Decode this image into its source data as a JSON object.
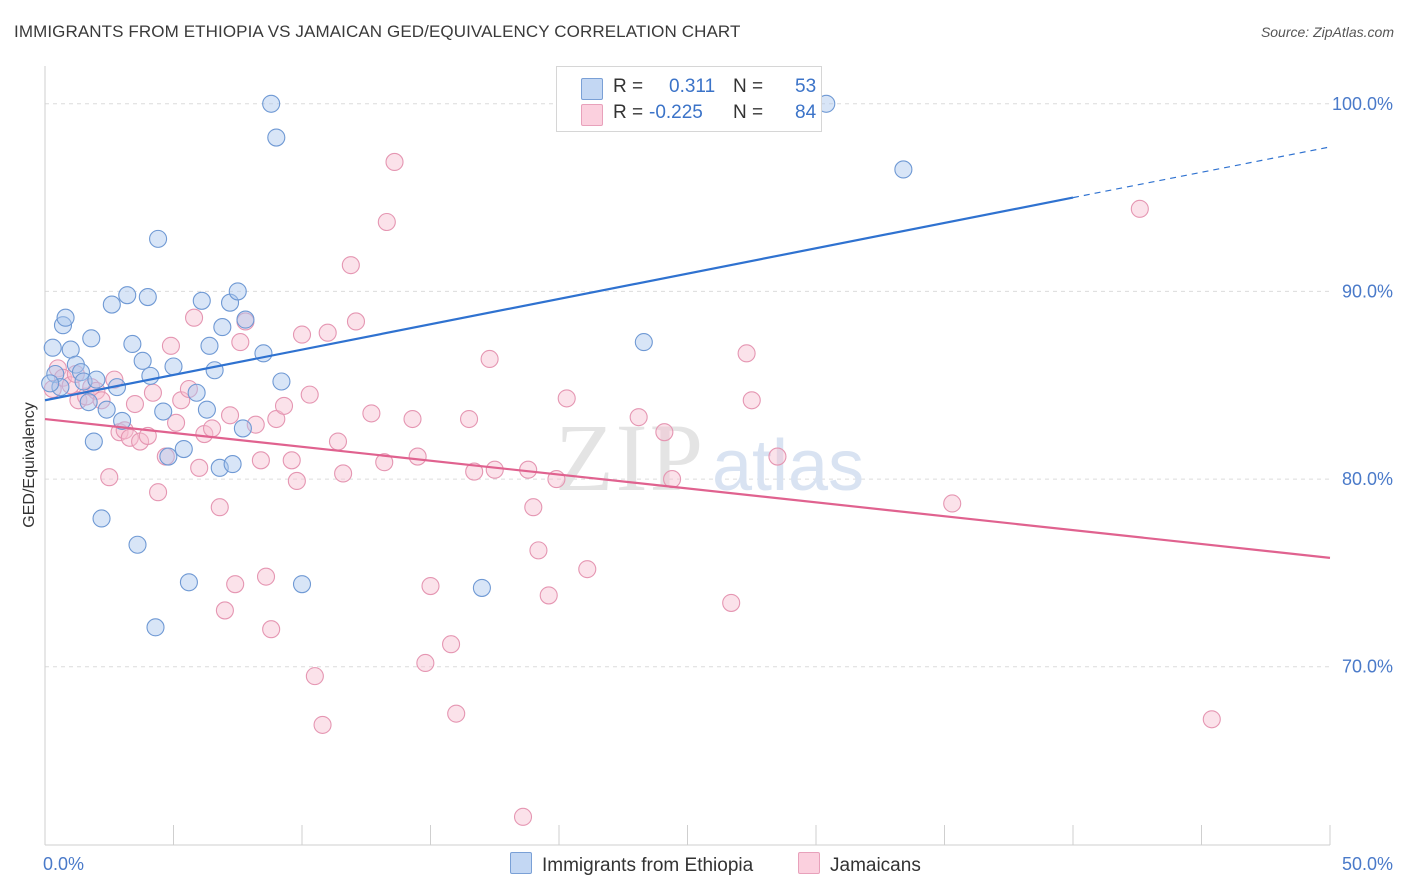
{
  "header": {
    "title": "IMMIGRANTS FROM ETHIOPIA VS JAMAICAN GED/EQUIVALENCY CORRELATION CHART",
    "source": "Source: ZipAtlas.com"
  },
  "watermark": {
    "zip": "ZIP",
    "atlas": "atlas"
  },
  "legend": {
    "r_label": "R =",
    "n_label": "N =",
    "rows": [
      {
        "r": "0.311",
        "n": "53"
      },
      {
        "r": "-0.225",
        "n": "84"
      }
    ]
  },
  "bottom_legend": [
    "Immigrants from Ethiopia",
    "Jamaicans"
  ],
  "chart_data": {
    "type": "scatter",
    "title": "IMMIGRANTS FROM ETHIOPIA VS JAMAICAN GED/EQUIVALENCY CORRELATION CHART",
    "xlabel": "",
    "ylabel": "GED/Equivalency",
    "xlim": [
      0,
      50
    ],
    "ylim": [
      60.5,
      101.8
    ],
    "x_tick_labels": [
      "0.0%",
      "50.0%"
    ],
    "y_ticks": [
      70,
      80,
      90,
      100
    ],
    "y_tick_labels": [
      "70.0%",
      "80.0%",
      "90.0%",
      "100.0%"
    ],
    "grid": true,
    "legend_position": "top-center",
    "series": [
      {
        "name": "Immigrants from Ethiopia",
        "color": "#a9c6ee",
        "edge": "#6f99d4",
        "trend_color": "#2f72d0",
        "R": 0.311,
        "N": 53,
        "trend": {
          "x0": 0,
          "y0": 84.2,
          "x1": 40,
          "y1": 95.0,
          "dash_to_x": 50,
          "dash_to_y": 97.7
        },
        "points": [
          [
            0.3,
            87.0
          ],
          [
            0.4,
            85.6
          ],
          [
            0.6,
            84.9
          ],
          [
            0.7,
            88.2
          ],
          [
            0.8,
            88.6
          ],
          [
            1.0,
            86.9
          ],
          [
            1.2,
            86.1
          ],
          [
            1.4,
            85.7
          ],
          [
            1.5,
            85.2
          ],
          [
            1.7,
            84.1
          ],
          [
            1.8,
            87.5
          ],
          [
            1.9,
            82.0
          ],
          [
            2.0,
            85.3
          ],
          [
            2.2,
            77.9
          ],
          [
            2.4,
            83.7
          ],
          [
            2.6,
            89.3
          ],
          [
            2.8,
            84.9
          ],
          [
            3.0,
            83.1
          ],
          [
            3.2,
            89.8
          ],
          [
            3.4,
            87.2
          ],
          [
            3.6,
            76.5
          ],
          [
            3.8,
            86.3
          ],
          [
            4.0,
            89.7
          ],
          [
            4.1,
            85.5
          ],
          [
            4.3,
            72.1
          ],
          [
            4.4,
            92.8
          ],
          [
            4.6,
            83.6
          ],
          [
            4.8,
            81.2
          ],
          [
            5.0,
            86.0
          ],
          [
            5.4,
            81.6
          ],
          [
            5.6,
            74.5
          ],
          [
            5.9,
            84.6
          ],
          [
            6.1,
            89.5
          ],
          [
            6.3,
            83.7
          ],
          [
            6.4,
            87.1
          ],
          [
            6.6,
            85.8
          ],
          [
            6.8,
            80.6
          ],
          [
            6.9,
            88.1
          ],
          [
            7.2,
            89.4
          ],
          [
            7.3,
            80.8
          ],
          [
            7.5,
            90.0
          ],
          [
            7.7,
            82.7
          ],
          [
            7.8,
            88.5
          ],
          [
            8.5,
            86.7
          ],
          [
            8.8,
            100.0
          ],
          [
            9.0,
            98.2
          ],
          [
            9.2,
            85.2
          ],
          [
            10.0,
            74.4
          ],
          [
            17.0,
            74.2
          ],
          [
            23.3,
            87.3
          ],
          [
            30.4,
            100.0
          ],
          [
            33.4,
            96.5
          ],
          [
            0.2,
            85.1
          ]
        ]
      },
      {
        "name": "Jamaicans",
        "color": "#f6bfd1",
        "edge": "#e596b2",
        "trend_color": "#e0628f",
        "R": -0.225,
        "N": 84,
        "trend": {
          "x0": 0,
          "y0": 83.2,
          "x1": 50,
          "y1": 75.8
        },
        "points": [
          [
            0.3,
            84.8
          ],
          [
            0.5,
            85.9
          ],
          [
            0.7,
            85.4
          ],
          [
            1.0,
            85.0
          ],
          [
            1.2,
            85.6
          ],
          [
            1.3,
            84.2
          ],
          [
            1.6,
            84.4
          ],
          [
            1.8,
            84.9
          ],
          [
            2.0,
            84.7
          ],
          [
            2.2,
            84.2
          ],
          [
            2.5,
            80.1
          ],
          [
            2.7,
            85.3
          ],
          [
            2.9,
            82.5
          ],
          [
            3.1,
            82.6
          ],
          [
            3.3,
            82.2
          ],
          [
            3.5,
            84.0
          ],
          [
            3.7,
            82.0
          ],
          [
            4.0,
            82.3
          ],
          [
            4.2,
            84.6
          ],
          [
            4.4,
            79.3
          ],
          [
            4.7,
            81.2
          ],
          [
            4.9,
            87.1
          ],
          [
            5.1,
            83.0
          ],
          [
            5.3,
            84.2
          ],
          [
            5.6,
            84.8
          ],
          [
            5.8,
            88.6
          ],
          [
            6.0,
            80.6
          ],
          [
            6.2,
            82.4
          ],
          [
            6.5,
            82.7
          ],
          [
            6.8,
            78.5
          ],
          [
            7.0,
            73.0
          ],
          [
            7.2,
            83.4
          ],
          [
            7.4,
            74.4
          ],
          [
            7.6,
            87.3
          ],
          [
            7.8,
            88.4
          ],
          [
            8.2,
            82.9
          ],
          [
            8.4,
            81.0
          ],
          [
            8.6,
            74.8
          ],
          [
            8.8,
            72.0
          ],
          [
            9.0,
            83.2
          ],
          [
            9.3,
            83.9
          ],
          [
            9.6,
            81.0
          ],
          [
            9.8,
            79.9
          ],
          [
            10.0,
            87.7
          ],
          [
            10.3,
            84.5
          ],
          [
            10.5,
            69.5
          ],
          [
            10.8,
            66.9
          ],
          [
            11.0,
            87.8
          ],
          [
            11.4,
            82.0
          ],
          [
            11.6,
            80.3
          ],
          [
            11.9,
            91.4
          ],
          [
            12.1,
            88.4
          ],
          [
            12.7,
            83.5
          ],
          [
            13.2,
            80.9
          ],
          [
            13.3,
            93.7
          ],
          [
            13.6,
            96.9
          ],
          [
            14.3,
            83.2
          ],
          [
            14.5,
            81.2
          ],
          [
            14.8,
            70.2
          ],
          [
            15.0,
            74.3
          ],
          [
            15.8,
            71.2
          ],
          [
            16.0,
            67.5
          ],
          [
            16.5,
            83.2
          ],
          [
            16.7,
            80.4
          ],
          [
            17.3,
            86.4
          ],
          [
            17.5,
            80.5
          ],
          [
            18.6,
            62.0
          ],
          [
            18.8,
            80.5
          ],
          [
            19.0,
            78.5
          ],
          [
            19.2,
            76.2
          ],
          [
            19.6,
            73.8
          ],
          [
            19.9,
            80.0
          ],
          [
            20.3,
            84.3
          ],
          [
            21.1,
            75.2
          ],
          [
            23.1,
            83.3
          ],
          [
            24.1,
            82.5
          ],
          [
            24.4,
            80.0
          ],
          [
            26.7,
            73.4
          ],
          [
            27.3,
            86.7
          ],
          [
            27.5,
            84.2
          ],
          [
            28.5,
            81.2
          ],
          [
            35.3,
            78.7
          ],
          [
            42.6,
            94.4
          ],
          [
            45.4,
            67.2
          ]
        ]
      }
    ]
  }
}
